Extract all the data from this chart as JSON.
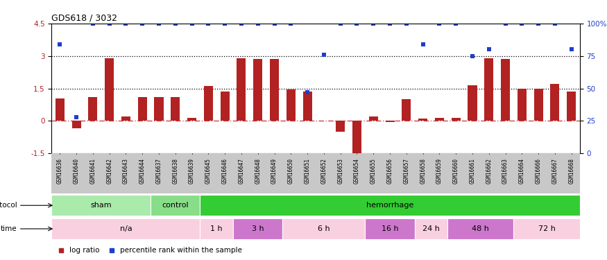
{
  "title": "GDS618 / 3032",
  "samples": [
    "GSM16636",
    "GSM16640",
    "GSM16641",
    "GSM16642",
    "GSM16643",
    "GSM16644",
    "GSM16637",
    "GSM16638",
    "GSM16639",
    "GSM16645",
    "GSM16646",
    "GSM16647",
    "GSM16648",
    "GSM16649",
    "GSM16650",
    "GSM16651",
    "GSM16652",
    "GSM16653",
    "GSM16654",
    "GSM16655",
    "GSM16656",
    "GSM16657",
    "GSM16658",
    "GSM16659",
    "GSM16660",
    "GSM16661",
    "GSM16662",
    "GSM16663",
    "GSM16664",
    "GSM16666",
    "GSM16667",
    "GSM16668"
  ],
  "log_ratio": [
    1.05,
    -0.35,
    1.1,
    2.9,
    0.2,
    1.1,
    1.1,
    1.1,
    0.15,
    1.6,
    1.35,
    2.9,
    2.85,
    2.85,
    1.45,
    1.35,
    0.0,
    -0.5,
    -1.65,
    0.2,
    -0.05,
    1.0,
    0.1,
    0.15,
    0.15,
    1.65,
    2.9,
    2.85,
    1.5,
    1.5,
    1.7,
    1.35
  ],
  "percentile_pct": [
    84,
    28,
    100,
    100,
    100,
    100,
    100,
    100,
    100,
    100,
    100,
    100,
    100,
    100,
    100,
    47,
    76,
    100,
    100,
    100,
    100,
    100,
    84,
    100,
    100,
    75,
    80,
    100,
    100,
    100,
    100,
    80
  ],
  "ylim_left": [
    -1.5,
    4.5
  ],
  "left_ticks": [
    -1.5,
    0.0,
    1.5,
    3.0,
    4.5
  ],
  "left_tick_labels": [
    "-1.5",
    "0",
    "1.5",
    "3",
    "4.5"
  ],
  "right_tick_pcts": [
    0,
    25,
    50,
    75,
    100
  ],
  "right_tick_labels": [
    "0",
    "25",
    "50",
    "75",
    "100%"
  ],
  "bar_color": "#B22222",
  "dot_color": "#1E3ECC",
  "zero_line_color": "#CC3333",
  "hline_color": "#000000",
  "tick_bg_color": "#C8C8C8",
  "protocol_groups": [
    {
      "label": "sham",
      "start": 0,
      "end": 5,
      "color": "#AAEAAA"
    },
    {
      "label": "control",
      "start": 6,
      "end": 8,
      "color": "#88DD88"
    },
    {
      "label": "hemorrhage",
      "start": 9,
      "end": 31,
      "color": "#33CC33"
    }
  ],
  "time_groups": [
    {
      "label": "n/a",
      "start": 0,
      "end": 8,
      "color": "#F9D0E0"
    },
    {
      "label": "1 h",
      "start": 9,
      "end": 10,
      "color": "#F9D0E0"
    },
    {
      "label": "3 h",
      "start": 11,
      "end": 13,
      "color": "#CC77CC"
    },
    {
      "label": "6 h",
      "start": 14,
      "end": 18,
      "color": "#F9D0E0"
    },
    {
      "label": "16 h",
      "start": 19,
      "end": 21,
      "color": "#CC77CC"
    },
    {
      "label": "24 h",
      "start": 22,
      "end": 23,
      "color": "#F9D0E0"
    },
    {
      "label": "48 h",
      "start": 24,
      "end": 27,
      "color": "#CC77CC"
    },
    {
      "label": "72 h",
      "start": 28,
      "end": 31,
      "color": "#F9D0E0"
    }
  ],
  "legend_items": [
    {
      "label": "log ratio",
      "color": "#B22222",
      "marker": "s"
    },
    {
      "label": "percentile rank within the sample",
      "color": "#1E3ECC",
      "marker": "s"
    }
  ],
  "background_color": "#FFFFFF"
}
